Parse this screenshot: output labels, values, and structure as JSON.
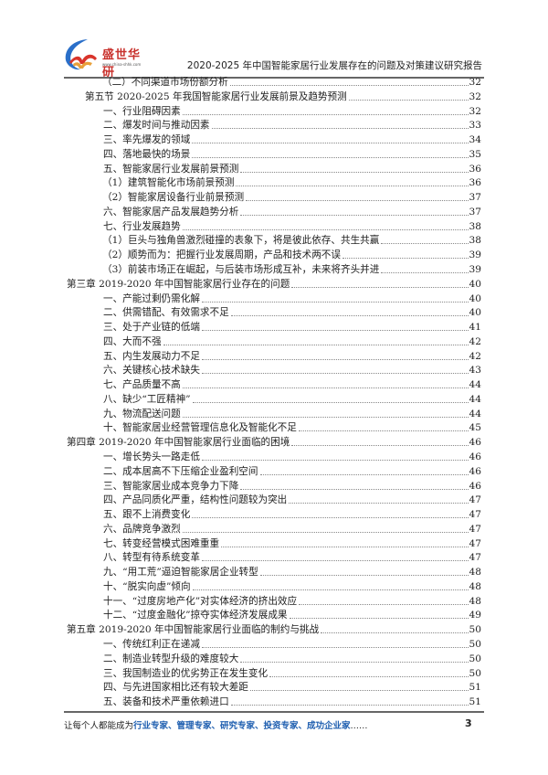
{
  "header": {
    "logo_text": "盛世华研",
    "logo_url": "www.china-shhk.com",
    "title": "2020-2025 年中国智能家居行业发展存在的问题及对策建议研究报告"
  },
  "toc": [
    {
      "level": 3,
      "text": "（二）不同渠道市场份额分析",
      "page": "32"
    },
    {
      "level": 1,
      "text": "第五节  2020-2025 年我国智能家居行业发展前景及趋势预测",
      "page": "32"
    },
    {
      "level": 2,
      "text": "一、行业阻碍因素",
      "page": "32"
    },
    {
      "level": 2,
      "text": "二、爆发时间与推动因素",
      "page": "33"
    },
    {
      "level": 2,
      "text": "三、率先爆发的领域",
      "page": "34"
    },
    {
      "level": 2,
      "text": "四、落地最快的场景",
      "page": "35"
    },
    {
      "level": 2,
      "text": "五、智能家居行业发展前景预测",
      "page": "36"
    },
    {
      "level": 3,
      "text": "（1）建筑智能化市场前景预测",
      "page": "36"
    },
    {
      "level": 3,
      "text": "（2）智能家居设备行业前景预测",
      "page": "37"
    },
    {
      "level": 2,
      "text": "六、智能家居产品发展趋势分析",
      "page": "37"
    },
    {
      "level": 2,
      "text": "七、行业发展趋势",
      "page": "38"
    },
    {
      "level": 3,
      "text": "（1）巨头与独角兽激烈碰撞的表象下，将是彼此依存、共生共赢",
      "page": "38"
    },
    {
      "level": 3,
      "text": "（2）顺势而为：把握行业发展周期，产品和技术两不误",
      "page": "39"
    },
    {
      "level": 3,
      "text": "（3）前装市场正在崛起，与后装市场形成互补，未来将齐头并进",
      "page": "39"
    },
    {
      "level": 0,
      "text": "第三章  2019-2020 年中国智能家居行业存在的问题",
      "page": "40"
    },
    {
      "level": 2,
      "text": "一、产能过剩仍需化解",
      "page": "40"
    },
    {
      "level": 2,
      "text": "二、供需错配、有效需求不足",
      "page": "40"
    },
    {
      "level": 2,
      "text": "三、处于产业链的低端",
      "page": "41"
    },
    {
      "level": 2,
      "text": "四、大而不强",
      "page": "42"
    },
    {
      "level": 2,
      "text": "五、内生发展动力不足",
      "page": "42"
    },
    {
      "level": 2,
      "text": "六、关键核心技术缺失",
      "page": "43"
    },
    {
      "level": 2,
      "text": "七、产品质量不高",
      "page": "44"
    },
    {
      "level": 2,
      "text": "八、缺少“工匠精神”",
      "page": "44"
    },
    {
      "level": 2,
      "text": "九、物流配送问题",
      "page": "44"
    },
    {
      "level": 2,
      "text": "十、智能家居业经营管理信息化及智能化不足",
      "page": "45"
    },
    {
      "level": 0,
      "text": "第四章  2019-2020 年中国智能家居行业面临的困境",
      "page": "46"
    },
    {
      "level": 2,
      "text": "一、增长势头一路走低",
      "page": "46"
    },
    {
      "level": 2,
      "text": "二、成本居高不下压缩企业盈利空间",
      "page": "46"
    },
    {
      "level": 2,
      "text": "三、智能家居业成本竞争力下降",
      "page": "46"
    },
    {
      "level": 2,
      "text": "四、产品同质化严重，结构性问题较为突出",
      "page": "47"
    },
    {
      "level": 2,
      "text": "五、跟不上消费变化",
      "page": "47"
    },
    {
      "level": 2,
      "text": "六、品牌竞争激烈",
      "page": "47"
    },
    {
      "level": 2,
      "text": "七、转变经营模式困难重重",
      "page": "47"
    },
    {
      "level": 2,
      "text": "八、转型有待系统变革",
      "page": "47"
    },
    {
      "level": 2,
      "text": "九、“用工荒”逼迫智能家居企业转型",
      "page": "48"
    },
    {
      "level": 2,
      "text": "十、“脱实向虚”倾向",
      "page": "48"
    },
    {
      "level": 2,
      "text": "十一、“过度房地产化”对实体经济的挤出效应",
      "page": "48"
    },
    {
      "level": 2,
      "text": "十二、“过度金融化”掠夺实体经济发展成果",
      "page": "49"
    },
    {
      "level": 0,
      "text": "第五章  2019-2020 年中国智能家居行业面临的制约与挑战",
      "page": "50"
    },
    {
      "level": 2,
      "text": "一、传统红利正在递减",
      "page": "50"
    },
    {
      "level": 2,
      "text": "二、制造业转型升级的难度较大",
      "page": "50"
    },
    {
      "level": 2,
      "text": "三、我国制造业的优劣势正在发生变化",
      "page": "50"
    },
    {
      "level": 2,
      "text": "四、与先进国家相比还有较大差距",
      "page": "51"
    },
    {
      "level": 2,
      "text": "五、装备和技术严重依赖进口",
      "page": "51"
    }
  ],
  "footer": {
    "prefix": "让每个人都能成为",
    "highlight": "行业专家、管理专家、研究专家、投资专家、成功企业家",
    "suffix": "……",
    "page_number": "3"
  },
  "colors": {
    "footer_highlight": "#1f5fb0",
    "logo_red": "#c8312c",
    "logo_blue": "#2a6fc9"
  }
}
